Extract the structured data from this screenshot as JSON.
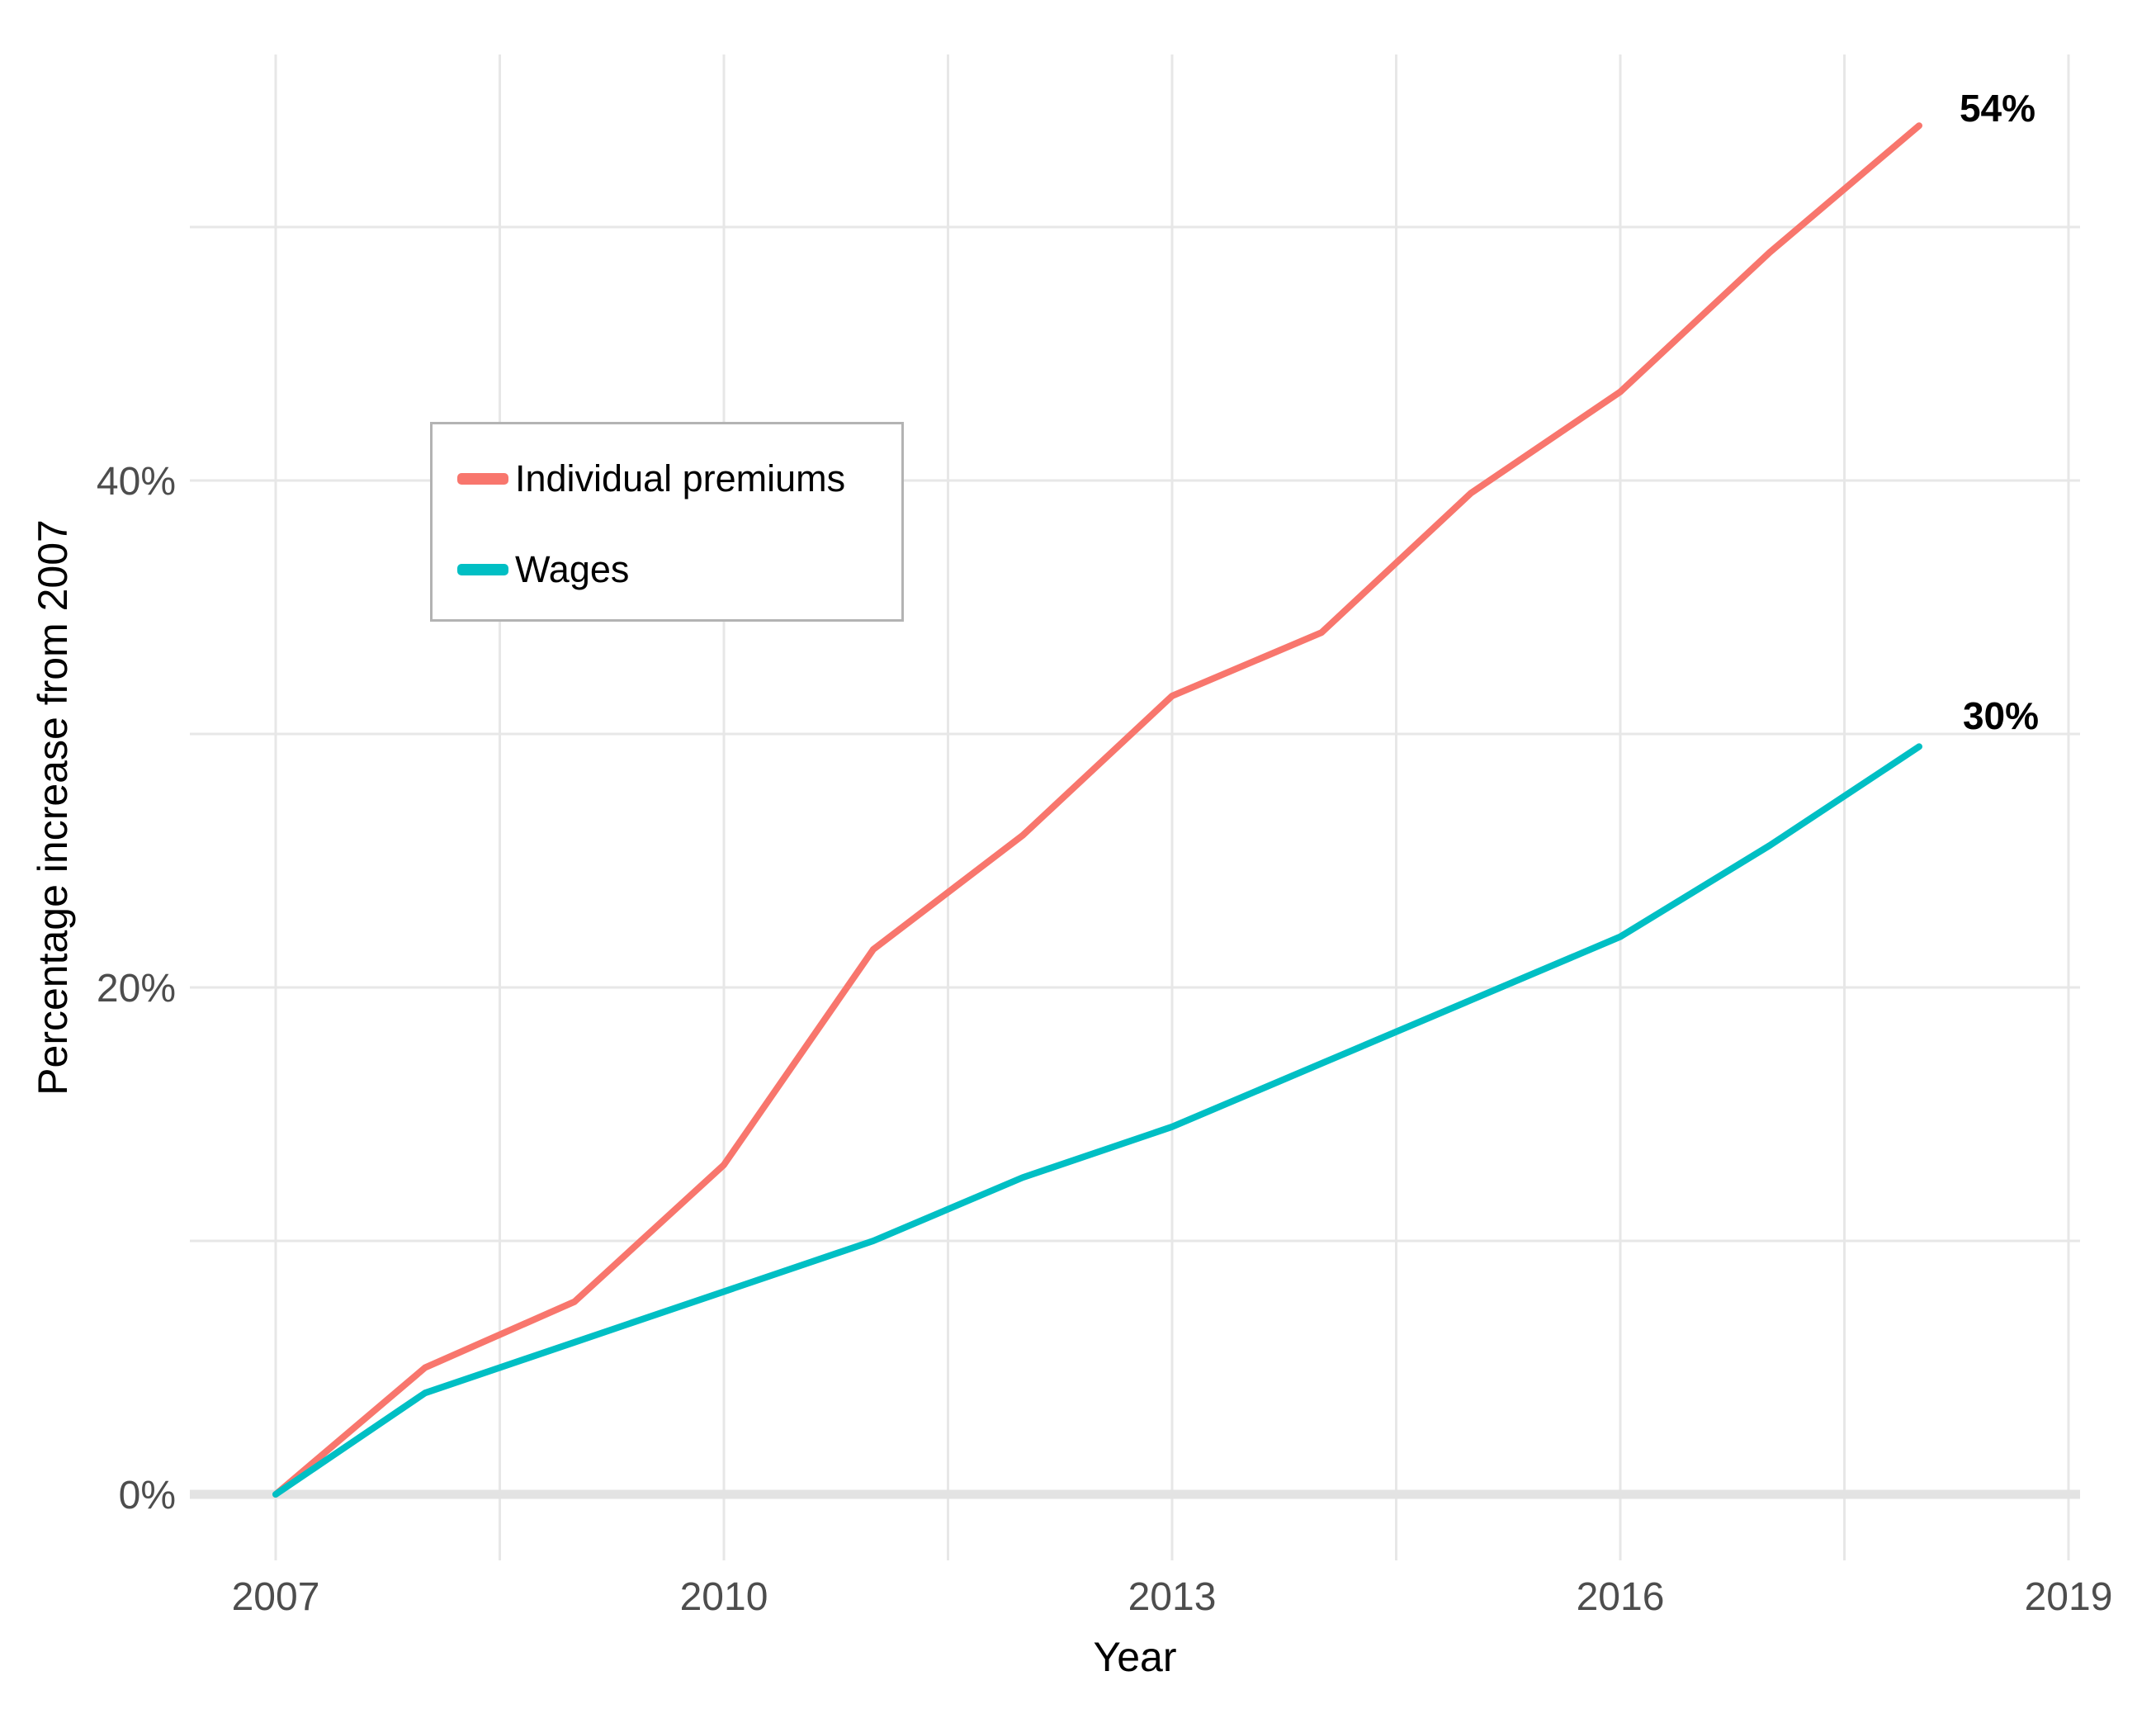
{
  "chart_data": {
    "type": "line",
    "title": "",
    "xlabel": "Year",
    "ylabel": "Percentage increase from 2007",
    "grid": true,
    "legend_position": "inside-top-left",
    "xlim": [
      2006.43,
      2019.08
    ],
    "ylim": [
      -2.6,
      56.8
    ],
    "x": [
      2007,
      2008,
      2009,
      2010,
      2011,
      2012,
      2013,
      2014,
      2015,
      2016,
      2017,
      2018
    ],
    "series": [
      {
        "name": "Individual premiums",
        "color": "#F8766D",
        "end_label": "54%",
        "values": [
          0,
          5,
          7.6,
          13,
          21.5,
          26,
          31.5,
          34,
          39.5,
          43.5,
          49,
          54
        ]
      },
      {
        "name": "Wages",
        "color": "#00BFC4",
        "end_label": "30%",
        "values": [
          0,
          4,
          6,
          8,
          10,
          12.5,
          14.5,
          17,
          19.5,
          22,
          25.6,
          29.5
        ]
      }
    ],
    "x_ticks": [
      {
        "label": "2007",
        "value": 2007
      },
      {
        "label": "2010",
        "value": 2010
      },
      {
        "label": "2013",
        "value": 2013
      },
      {
        "label": "2016",
        "value": 2016
      },
      {
        "label": "2019",
        "value": 2019
      }
    ],
    "y_ticks": [
      {
        "label": "0%",
        "value": 0
      },
      {
        "label": "20%",
        "value": 20
      },
      {
        "label": "40%",
        "value": 40
      }
    ],
    "x_minor_ticks": [
      2008.5,
      2011.5,
      2014.5,
      2017.5
    ],
    "y_minor_ticks": [
      10,
      30,
      50
    ]
  },
  "colors": {
    "background": "#ffffff",
    "gridline": "#e7e7e7",
    "zero_line": "#e3e3e3",
    "tick_text": "#4d4d4d",
    "axis_title": "#000000",
    "legend_border": "#b3b3b3",
    "premiums": "#F8766D",
    "wages": "#00BFC4"
  }
}
